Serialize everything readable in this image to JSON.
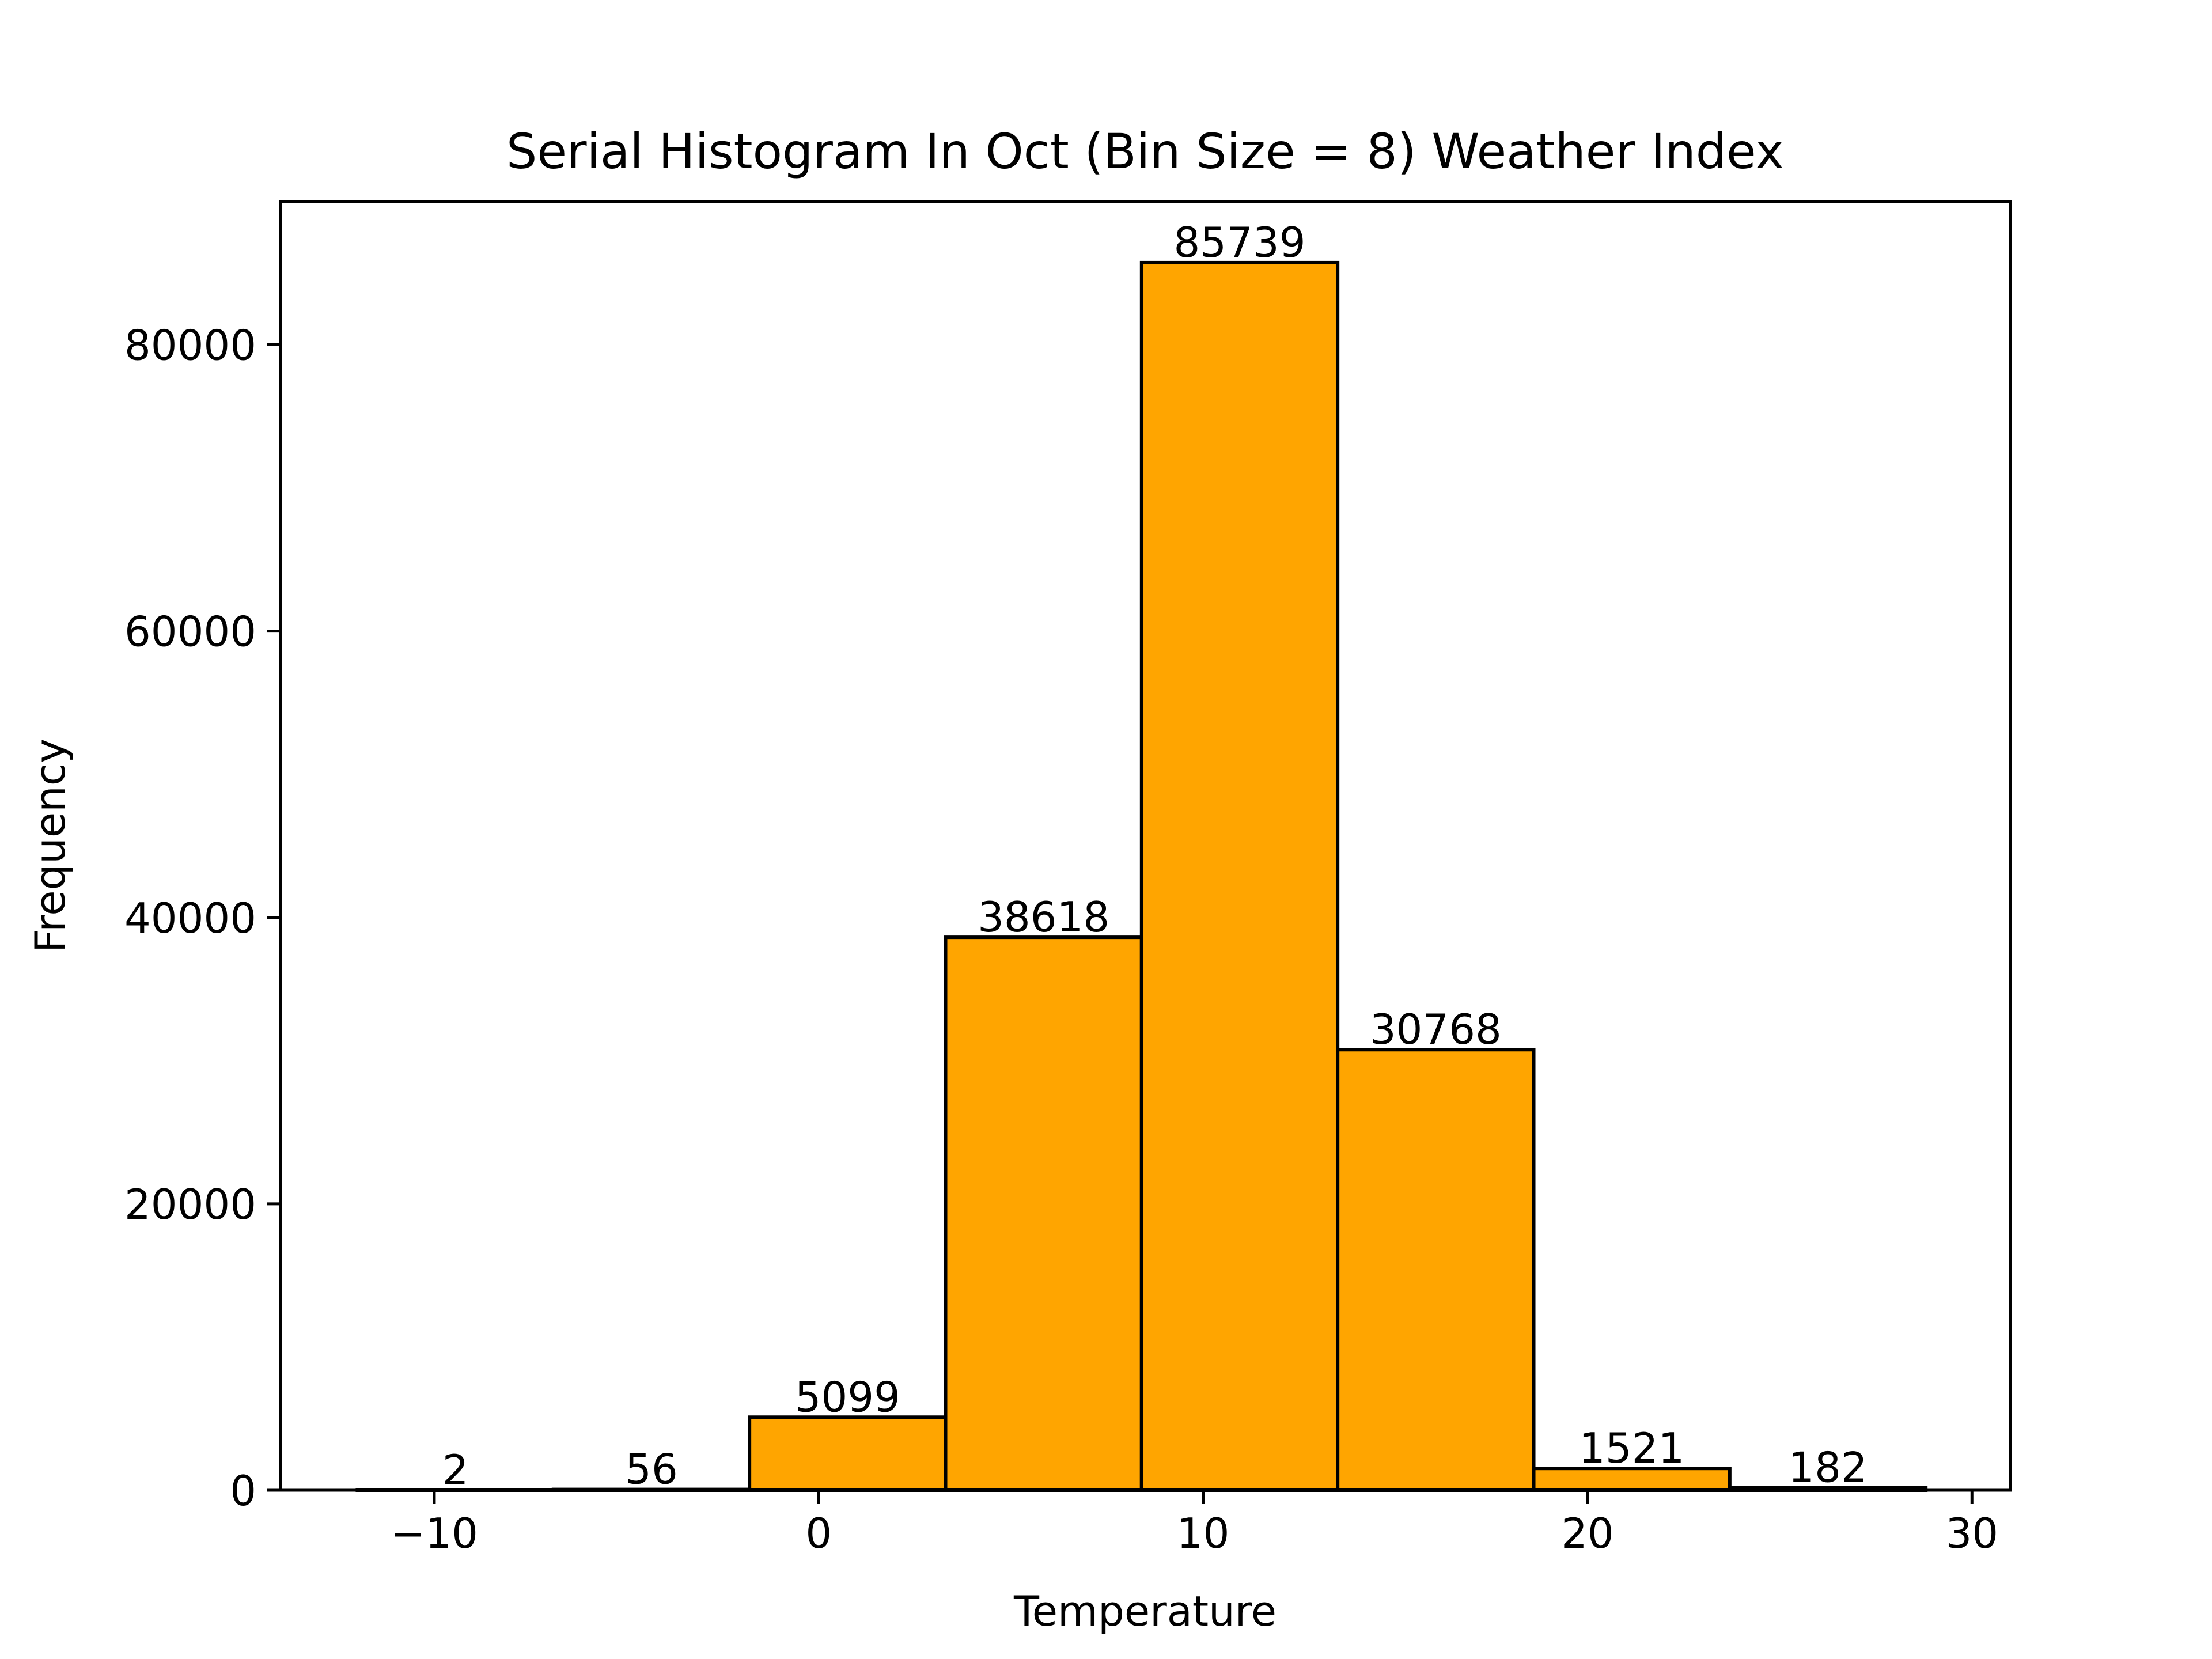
{
  "chart_data": {
    "type": "bar",
    "title": "Serial Histogram In Oct (Bin Size = 8) Weather Index",
    "xlabel": "Temperature",
    "ylabel": "Frequency",
    "bin_edges": [
      -12.0,
      -6.9,
      -1.8,
      3.3,
      8.4,
      13.5,
      18.6,
      23.7,
      28.8
    ],
    "values": [
      2,
      56,
      5099,
      38618,
      85739,
      30768,
      1521,
      182
    ],
    "data_labels": [
      "2",
      "56",
      "5099",
      "38618",
      "85739",
      "30768",
      "1521",
      "182"
    ],
    "xlim": [
      -14.0,
      31.0
    ],
    "ylim": [
      0,
      90000
    ],
    "xticks": [
      -10,
      0,
      10,
      20,
      30
    ],
    "xtick_labels": [
      "−10",
      "0",
      "10",
      "20",
      "30"
    ],
    "yticks": [
      0,
      20000,
      40000,
      60000,
      80000
    ],
    "ytick_labels": [
      "0",
      "20000",
      "40000",
      "60000",
      "80000"
    ],
    "grid": false,
    "bar_color": "#FFA500",
    "edge_color": "#000000"
  }
}
